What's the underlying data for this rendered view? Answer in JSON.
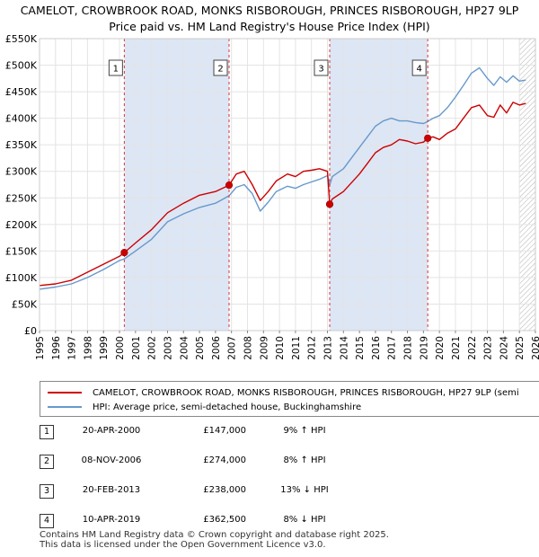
{
  "title_line1": "CAMELOT, CROWBROOK ROAD, MONKS RISBOROUGH, PRINCES RISBOROUGH, HP27 9LP",
  "title_line2": "Price paid vs. HM Land Registry's House Price Index (HPI)",
  "legend": {
    "property": "CAMELOT, CROWBROOK ROAD, MONKS RISBOROUGH, PRINCES RISBOROUGH, HP27 9LP (semi",
    "hpi": "HPI: Average price, semi-detached house, Buckinghamshire"
  },
  "colors": {
    "property": "#cc0000",
    "hpi": "#6699cc",
    "shade": "#dde6f5",
    "marker_line": "#dd3333"
  },
  "sales": [
    {
      "num": "1",
      "date": "20-APR-2000",
      "price": "£147,000",
      "hpi": "9% ↑ HPI",
      "year": 2000.3,
      "value": 147000
    },
    {
      "num": "2",
      "date": "08-NOV-2006",
      "price": "£274,000",
      "hpi": "8% ↑ HPI",
      "year": 2006.85,
      "value": 274000
    },
    {
      "num": "3",
      "date": "20-FEB-2013",
      "price": "£238,000",
      "hpi": "13% ↓ HPI",
      "year": 2013.14,
      "value": 238000
    },
    {
      "num": "4",
      "date": "10-APR-2019",
      "price": "£362,500",
      "hpi": "8% ↓ HPI",
      "year": 2019.27,
      "value": 362500
    }
  ],
  "footer": {
    "line1": "Contains HM Land Registry data © Crown copyright and database right 2025.",
    "line2": "This data is licensed under the Open Government Licence v3.0."
  },
  "chart_data": {
    "type": "line",
    "title": "Price paid vs. HM Land Registry's House Price Index (HPI)",
    "xlim": [
      1995,
      2026
    ],
    "ylim": [
      0,
      550000
    ],
    "yticks": [
      0,
      50000,
      100000,
      150000,
      200000,
      250000,
      300000,
      350000,
      400000,
      450000,
      500000,
      550000
    ],
    "ytick_labels": [
      "£0",
      "£50K",
      "£100K",
      "£150K",
      "£200K",
      "£250K",
      "£300K",
      "£350K",
      "£400K",
      "£450K",
      "£500K",
      "£550K"
    ],
    "xticks": [
      1995,
      1996,
      1997,
      1998,
      1999,
      2000,
      2001,
      2002,
      2003,
      2004,
      2005,
      2006,
      2007,
      2008,
      2009,
      2010,
      2011,
      2012,
      2013,
      2014,
      2015,
      2016,
      2017,
      2018,
      2019,
      2020,
      2021,
      2022,
      2023,
      2024,
      2025,
      2026
    ],
    "hatch_from": 2025.0,
    "series": [
      {
        "name": "property",
        "x": [
          1995.0,
          1996.0,
          1997.0,
          1998.0,
          1999.0,
          2000.0,
          2000.3,
          2001.0,
          2002.0,
          2003.0,
          2004.0,
          2005.0,
          2006.0,
          2006.85,
          2007.3,
          2007.8,
          2008.3,
          2008.8,
          2009.3,
          2009.8,
          2010.5,
          2011.0,
          2011.5,
          2012.0,
          2012.5,
          2013.0,
          2013.14,
          2013.3,
          2014.0,
          2015.0,
          2015.5,
          2016.0,
          2016.5,
          2017.0,
          2017.5,
          2018.0,
          2018.5,
          2019.0,
          2019.27,
          2019.6,
          2020.0,
          2020.5,
          2021.0,
          2021.5,
          2022.0,
          2022.5,
          2023.0,
          2023.4,
          2023.8,
          2024.2,
          2024.6,
          2025.0,
          2025.4
        ],
        "values": [
          85000,
          88000,
          95000,
          110000,
          125000,
          140000,
          147000,
          165000,
          190000,
          222000,
          240000,
          255000,
          262000,
          274000,
          295000,
          300000,
          275000,
          245000,
          262000,
          282000,
          295000,
          290000,
          300000,
          302000,
          305000,
          300000,
          238000,
          248000,
          262000,
          295000,
          315000,
          335000,
          345000,
          350000,
          360000,
          357000,
          352000,
          355000,
          362500,
          365000,
          360000,
          372000,
          380000,
          400000,
          420000,
          425000,
          405000,
          402000,
          425000,
          410000,
          430000,
          425000,
          428000
        ]
      },
      {
        "name": "hpi",
        "x": [
          1995.0,
          1996.0,
          1997.0,
          1998.0,
          1999.0,
          2000.0,
          2000.3,
          2001.0,
          2002.0,
          2003.0,
          2004.0,
          2005.0,
          2006.0,
          2006.85,
          2007.3,
          2007.8,
          2008.3,
          2008.8,
          2009.3,
          2009.8,
          2010.5,
          2011.0,
          2011.5,
          2012.0,
          2012.5,
          2013.0,
          2013.14,
          2013.3,
          2014.0,
          2015.0,
          2015.5,
          2016.0,
          2016.5,
          2017.0,
          2017.5,
          2018.0,
          2018.5,
          2019.0,
          2019.27,
          2019.6,
          2020.0,
          2020.5,
          2021.0,
          2021.5,
          2022.0,
          2022.5,
          2023.0,
          2023.4,
          2023.8,
          2024.2,
          2024.6,
          2025.0,
          2025.4
        ],
        "values": [
          78000,
          82000,
          88000,
          100000,
          115000,
          132000,
          135000,
          150000,
          172000,
          205000,
          220000,
          232000,
          240000,
          254000,
          270000,
          275000,
          258000,
          225000,
          242000,
          262000,
          272000,
          268000,
          275000,
          280000,
          285000,
          292000,
          274000,
          290000,
          305000,
          345000,
          365000,
          385000,
          395000,
          400000,
          395000,
          395000,
          392000,
          390000,
          394000,
          400000,
          405000,
          420000,
          440000,
          462000,
          485000,
          495000,
          475000,
          462000,
          478000,
          468000,
          480000,
          470000,
          472000
        ]
      }
    ]
  }
}
